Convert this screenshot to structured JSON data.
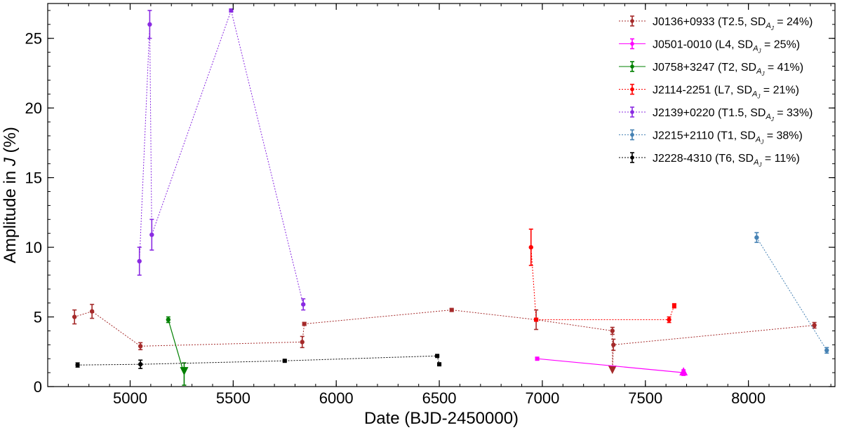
{
  "chart_data": {
    "type": "scatter",
    "xlabel_prefix": "Date",
    "xlabel_suffix": "(BJD-2450000)",
    "ylabel_prefix": "Amplitude in",
    "ylabel_var": "J",
    "ylabel_suffix": "(%)",
    "xlim": [
      4600,
      8420
    ],
    "ylim": [
      0,
      27.5
    ],
    "xticks": [
      5000,
      5500,
      6000,
      6500,
      7000,
      7500,
      8000
    ],
    "yticks": [
      0,
      5,
      10,
      15,
      20,
      25
    ],
    "grid": false,
    "legend_position": "top-right",
    "series": [
      {
        "name": "J0136+0933",
        "legend_main": "J0136+0933 (T2.5, SD",
        "legend_sub": "A",
        "legend_subsub": "J",
        "legend_tail": "= 24%)",
        "color": "#a52a2a",
        "linestyle": "dotted",
        "points": [
          {
            "x": 4730,
            "y": 5.0,
            "err": 0.5,
            "marker": "circle"
          },
          {
            "x": 4815,
            "y": 5.4,
            "err": 0.5,
            "marker": "circle"
          },
          {
            "x": 5050,
            "y": 2.9,
            "err": 0.25,
            "marker": "circle"
          },
          {
            "x": 5835,
            "y": 3.2,
            "err": 0.4,
            "marker": "circle"
          },
          {
            "x": 5845,
            "y": 4.5,
            "err": 0.1,
            "marker": "square"
          },
          {
            "x": 6560,
            "y": 5.5,
            "err": 0.1,
            "marker": "square"
          },
          {
            "x": 6970,
            "y": 4.8,
            "err": 0.7,
            "marker": "circle"
          },
          {
            "x": 7340,
            "y": 4.0,
            "err": 0.25,
            "marker": "circle"
          },
          {
            "x": 7340,
            "y": 1.0,
            "err": 0,
            "marker": "triangle-down"
          },
          {
            "x": 7345,
            "y": 3.0,
            "err": 0.4,
            "marker": "circle"
          },
          {
            "x": 8320,
            "y": 4.4,
            "err": 0.2,
            "marker": "circle"
          }
        ]
      },
      {
        "name": "J0501-0010",
        "legend_main": "J0501-0010 (L4, SD",
        "legend_sub": "A",
        "legend_subsub": "J",
        "legend_tail": "= 25%)",
        "color": "#ff00ff",
        "linestyle": "solid",
        "points": [
          {
            "x": 6975,
            "y": 2.0,
            "err": 0.1,
            "marker": "square"
          },
          {
            "x": 7685,
            "y": 1.0,
            "err": 0.2,
            "marker": "triangle-up"
          }
        ]
      },
      {
        "name": "J0758+3247",
        "legend_main": "J0758+3247 (T2, SD",
        "legend_sub": "A",
        "legend_subsub": "J",
        "legend_tail": "= 41%)",
        "color": "#008000",
        "linestyle": "solid",
        "points": [
          {
            "x": 5185,
            "y": 4.8,
            "err": 0.2,
            "marker": "circle"
          },
          {
            "x": 5262,
            "y": 0.9,
            "err": 0.8,
            "marker": "triangle-down"
          }
        ]
      },
      {
        "name": "J2114-2251",
        "legend_main": "J2114-2251 (L7, SD",
        "legend_sub": "A",
        "legend_subsub": "J",
        "legend_tail": "= 21%)",
        "color": "#ff0000",
        "linestyle": "dotted",
        "points": [
          {
            "x": 6945,
            "y": 10.0,
            "err": 1.3,
            "marker": "circle"
          },
          {
            "x": 6970,
            "y": 4.8,
            "err": 0.1,
            "marker": "square"
          },
          {
            "x": 7615,
            "y": 4.8,
            "err": 0.2,
            "marker": "circle"
          },
          {
            "x": 7640,
            "y": 5.8,
            "err": 0.15,
            "marker": "square"
          }
        ]
      },
      {
        "name": "J2139+0220",
        "legend_main": "J2139+0220 (T1.5, SD",
        "legend_sub": "A",
        "legend_subsub": "J",
        "legend_tail": "= 33%)",
        "color": "#8a2be2",
        "linestyle": "dotted",
        "points": [
          {
            "x": 5045,
            "y": 9.0,
            "err": 1.0,
            "marker": "circle"
          },
          {
            "x": 5095,
            "y": 26.0,
            "err": 1.0,
            "marker": "circle"
          },
          {
            "x": 5105,
            "y": 10.9,
            "err": 1.1,
            "marker": "circle"
          },
          {
            "x": 5490,
            "y": 27.0,
            "err": 0.1,
            "marker": "square"
          },
          {
            "x": 5840,
            "y": 5.9,
            "err": 0.4,
            "marker": "circle"
          }
        ]
      },
      {
        "name": "J2215+2110",
        "legend_main": "J2215+2110 (T1, SD",
        "legend_sub": "A",
        "legend_subsub": "J",
        "legend_tail": "= 38%)",
        "color": "#4682b4",
        "linestyle": "dotted",
        "points": [
          {
            "x": 8040,
            "y": 10.7,
            "err": 0.35,
            "marker": "circle"
          },
          {
            "x": 8380,
            "y": 2.6,
            "err": 0.2,
            "marker": "circle"
          }
        ]
      },
      {
        "name": "J2228-4310",
        "legend_main": "J2228-4310 (T6, SD",
        "legend_sub": "A",
        "legend_subsub": "J",
        "legend_tail": "= 11%)",
        "color": "#000000",
        "linestyle": "dotted",
        "points": [
          {
            "x": 4745,
            "y": 1.55,
            "err": 0.15,
            "marker": "circle"
          },
          {
            "x": 5050,
            "y": 1.6,
            "err": 0.3,
            "marker": "circle"
          },
          {
            "x": 5750,
            "y": 1.85,
            "err": 0.05,
            "marker": "square"
          },
          {
            "x": 6490,
            "y": 2.2,
            "err": 0.05,
            "marker": "square"
          },
          {
            "x": 6500,
            "y": 1.6,
            "err": 0.05,
            "marker": "square"
          }
        ]
      }
    ]
  }
}
